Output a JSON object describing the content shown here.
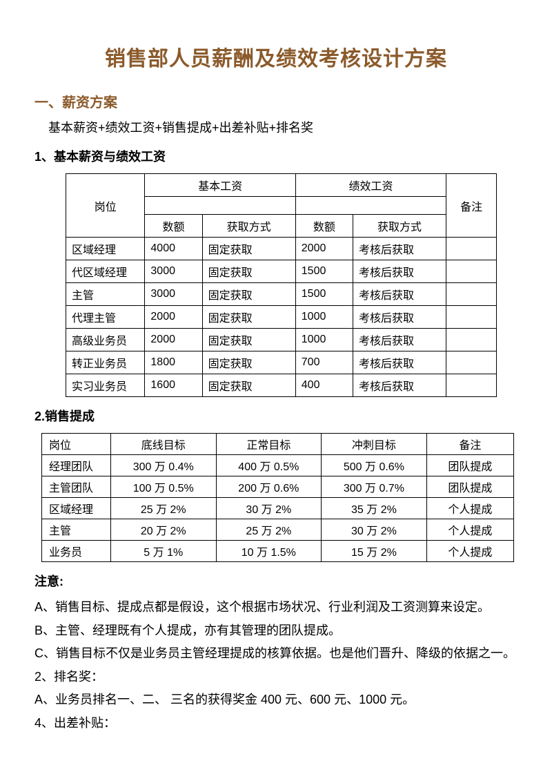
{
  "title": "销售部人员薪酬及绩效考核设计方案",
  "section1": {
    "heading": "一、薪资方案",
    "formula": "基本薪资+绩效工资+销售提成+出差补贴+排名奖"
  },
  "sub1": {
    "heading": "1、基本薪资与绩效工资",
    "table": {
      "headers": {
        "position": "岗位",
        "base_wage": "基本工资",
        "perf_wage": "绩效工资",
        "note": "备注",
        "amount": "数额",
        "method": "获取方式"
      },
      "rows": [
        {
          "pos": "区域经理",
          "base_amt": "4000",
          "base_m": "固定获取",
          "perf_amt": "2000",
          "perf_m": "考核后获取"
        },
        {
          "pos": "代区域经理",
          "base_amt": "3000",
          "base_m": "固定获取",
          "perf_amt": "1500",
          "perf_m": "考核后获取"
        },
        {
          "pos": "主管",
          "base_amt": "3000",
          "base_m": "固定获取",
          "perf_amt": "1500",
          "perf_m": "考核后获取"
        },
        {
          "pos": "代理主管",
          "base_amt": "2000",
          "base_m": "固定获取",
          "perf_amt": "1000",
          "perf_m": "考核后获取"
        },
        {
          "pos": "高级业务员",
          "base_amt": "2000",
          "base_m": "固定获取",
          "perf_amt": "1000",
          "perf_m": "考核后获取"
        },
        {
          "pos": "转正业务员",
          "base_amt": "1800",
          "base_m": "固定获取",
          "perf_amt": "700",
          "perf_m": "考核后获取"
        },
        {
          "pos": "实习业务员",
          "base_amt": "1600",
          "base_m": "固定获取",
          "perf_amt": "400",
          "perf_m": "考核后获取"
        }
      ]
    }
  },
  "sub2": {
    "heading": "2.销售提成",
    "table": {
      "headers": {
        "position": "岗位",
        "baseline": "底线目标",
        "normal": "正常目标",
        "sprint": "冲刺目标",
        "note": "备注"
      },
      "rows": [
        {
          "pos": "经理团队",
          "a": "300 万 0.4%",
          "b": "400 万 0.5%",
          "c": "500 万 0.6%",
          "note": "团队提成"
        },
        {
          "pos": "主管团队",
          "a": "100 万  0.5%",
          "b": "200 万  0.6%",
          "c": "300 万 0.7%",
          "note": "团队提成"
        },
        {
          "pos": "区域经理",
          "a": "25 万  2%",
          "b": "30 万  2%",
          "c": "35 万  2%",
          "note": "个人提成"
        },
        {
          "pos": "主管",
          "a": "20 万  2%",
          "b": "25 万  2%",
          "c": "30 万  2%",
          "note": "个人提成"
        },
        {
          "pos": "业务员",
          "a": "5 万  1%",
          "b": "10 万 1.5%",
          "c": "15 万  2%",
          "note": "个人提成"
        }
      ]
    }
  },
  "notes": {
    "heading": "注意:",
    "lines": [
      "A、销售目标、提成点都是假设，这个根据市场状况、行业利润及工资测算来设定。",
      "B、主管、经理既有个人提成，亦有其管理的团队提成。",
      "C、销售目标不仅是业务员主管经理提成的核算依据。也是他们晋升、降级的依据之一。",
      "2、排名奖：",
      "  A、业务员排名一、二、 三名的获得奖金 400 元、600 元、1000 元。",
      "4、出差补贴："
    ]
  }
}
